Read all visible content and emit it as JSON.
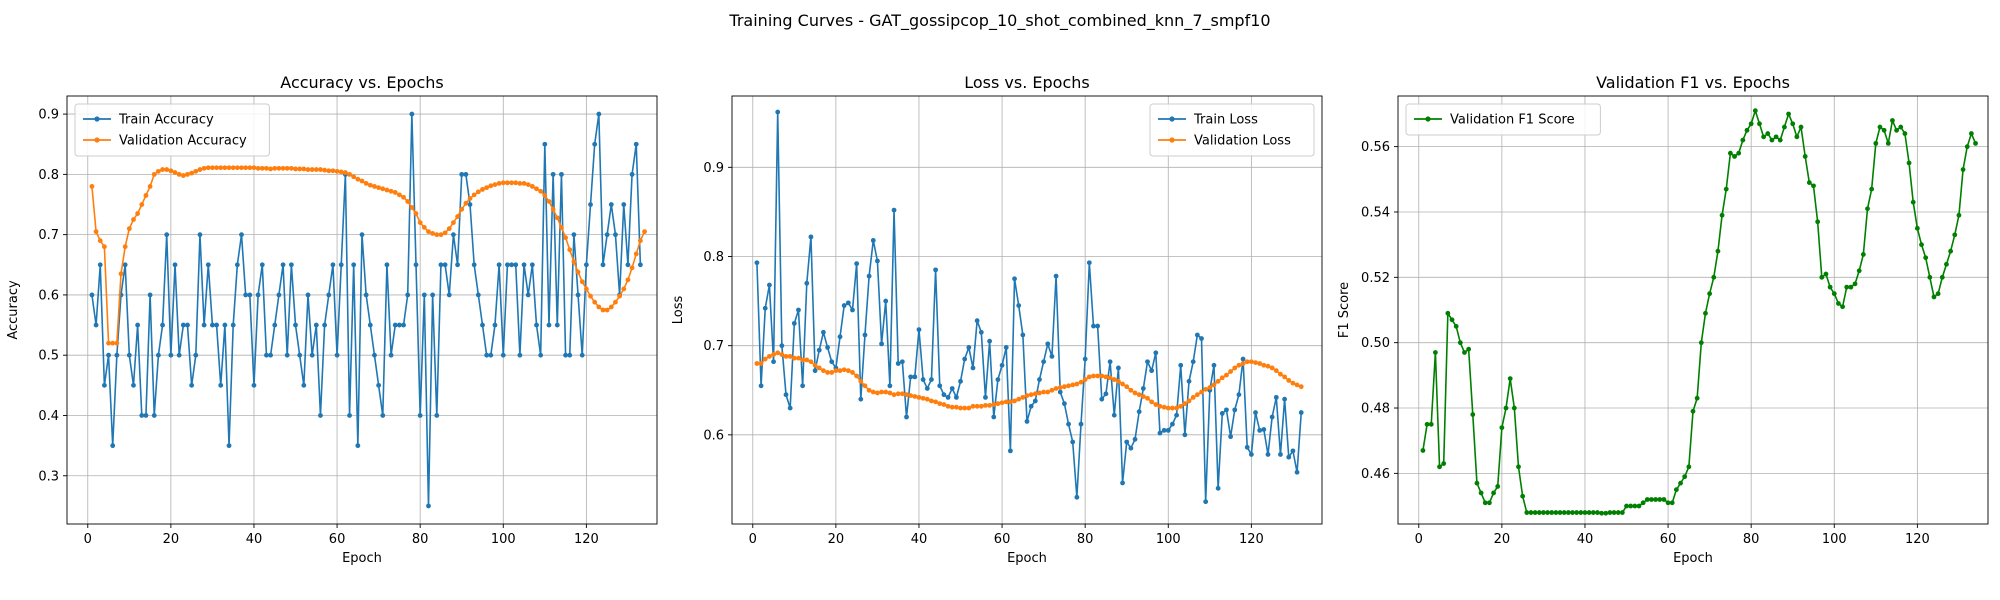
{
  "figure": {
    "suptitle": "Training Curves - GAT_gossipcop_10_shot_combined_knn_7_smpf10"
  },
  "chart_data": [
    {
      "type": "line",
      "title": "Accuracy vs. Epochs",
      "xlabel": "Epoch",
      "ylabel": "Accuracy",
      "xlim": [
        -5,
        137
      ],
      "ylim": [
        0.22,
        0.93
      ],
      "xticks": [
        0,
        20,
        40,
        60,
        80,
        100,
        120
      ],
      "yticks": [
        0.3,
        0.4,
        0.5,
        0.6,
        0.7,
        0.8,
        0.9
      ],
      "tick_format": 1,
      "grid": true,
      "legend_position": "top-left",
      "series": [
        {
          "name": "Train Accuracy",
          "color": "#1f77b4",
          "x_start": 1,
          "values": [
            0.6,
            0.55,
            0.65,
            0.45,
            0.5,
            0.35,
            0.5,
            0.6,
            0.65,
            0.5,
            0.45,
            0.55,
            0.4,
            0.4,
            0.6,
            0.4,
            0.5,
            0.55,
            0.7,
            0.5,
            0.65,
            0.5,
            0.55,
            0.55,
            0.45,
            0.5,
            0.7,
            0.55,
            0.65,
            0.55,
            0.55,
            0.45,
            0.55,
            0.35,
            0.55,
            0.65,
            0.7,
            0.6,
            0.6,
            0.45,
            0.6,
            0.65,
            0.5,
            0.5,
            0.55,
            0.6,
            0.65,
            0.5,
            0.65,
            0.55,
            0.5,
            0.45,
            0.6,
            0.5,
            0.55,
            0.4,
            0.55,
            0.6,
            0.65,
            0.5,
            0.65,
            0.8,
            0.4,
            0.65,
            0.35,
            0.7,
            0.6,
            0.55,
            0.5,
            0.45,
            0.4,
            0.65,
            0.5,
            0.55,
            0.55,
            0.55,
            0.6,
            0.9,
            0.65,
            0.4,
            0.6,
            0.25,
            0.6,
            0.4,
            0.65,
            0.65,
            0.6,
            0.7,
            0.65,
            0.8,
            0.8,
            0.75,
            0.65,
            0.6,
            0.55,
            0.5,
            0.5,
            0.55,
            0.65,
            0.5,
            0.65,
            0.65,
            0.65,
            0.5,
            0.65,
            0.6,
            0.65,
            0.55,
            0.5,
            0.85,
            0.55,
            0.8,
            0.55,
            0.8,
            0.5,
            0.5,
            0.7,
            0.6,
            0.5,
            0.65,
            0.75,
            0.85,
            0.9,
            0.65,
            0.7,
            0.75,
            0.7,
            0.6,
            0.75,
            0.65,
            0.8,
            0.85,
            0.65
          ]
        },
        {
          "name": "Validation Accuracy",
          "color": "#ff7f0e",
          "x_start": 1,
          "values": [
            0.78,
            0.705,
            0.69,
            0.68,
            0.52,
            0.52,
            0.52,
            0.635,
            0.68,
            0.71,
            0.725,
            0.735,
            0.75,
            0.765,
            0.78,
            0.8,
            0.805,
            0.808,
            0.808,
            0.806,
            0.803,
            0.8,
            0.798,
            0.8,
            0.802,
            0.805,
            0.808,
            0.81,
            0.811,
            0.811,
            0.811,
            0.811,
            0.811,
            0.811,
            0.811,
            0.811,
            0.811,
            0.811,
            0.811,
            0.811,
            0.81,
            0.81,
            0.81,
            0.809,
            0.81,
            0.81,
            0.81,
            0.81,
            0.81,
            0.809,
            0.809,
            0.809,
            0.808,
            0.808,
            0.808,
            0.808,
            0.807,
            0.806,
            0.806,
            0.805,
            0.804,
            0.803,
            0.8,
            0.796,
            0.792,
            0.789,
            0.785,
            0.782,
            0.78,
            0.778,
            0.776,
            0.774,
            0.772,
            0.77,
            0.766,
            0.762,
            0.755,
            0.745,
            0.735,
            0.72,
            0.712,
            0.705,
            0.702,
            0.7,
            0.7,
            0.703,
            0.71,
            0.72,
            0.73,
            0.742,
            0.752,
            0.76,
            0.766,
            0.771,
            0.775,
            0.778,
            0.781,
            0.783,
            0.785,
            0.786,
            0.786,
            0.786,
            0.786,
            0.785,
            0.785,
            0.783,
            0.78,
            0.776,
            0.772,
            0.765,
            0.755,
            0.742,
            0.728,
            0.712,
            0.695,
            0.675,
            0.655,
            0.638,
            0.622,
            0.61,
            0.598,
            0.588,
            0.58,
            0.575,
            0.575,
            0.58,
            0.588,
            0.598,
            0.61,
            0.625,
            0.645,
            0.668,
            0.69,
            0.705
          ]
        }
      ]
    },
    {
      "type": "line",
      "title": "Loss vs. Epochs",
      "xlabel": "Epoch",
      "ylabel": "Loss",
      "xlim": [
        -5,
        137
      ],
      "ylim": [
        0.5,
        0.98
      ],
      "xticks": [
        0,
        20,
        40,
        60,
        80,
        100,
        120
      ],
      "yticks": [
        0.6,
        0.7,
        0.8,
        0.9
      ],
      "tick_format": 1,
      "grid": true,
      "legend_position": "top-right",
      "series": [
        {
          "name": "Train Loss",
          "color": "#1f77b4",
          "x_start": 1,
          "values": [
            0.793,
            0.655,
            0.742,
            0.768,
            0.682,
            0.962,
            0.7,
            0.645,
            0.63,
            0.725,
            0.74,
            0.655,
            0.77,
            0.822,
            0.672,
            0.695,
            0.715,
            0.698,
            0.682,
            0.675,
            0.71,
            0.745,
            0.748,
            0.74,
            0.792,
            0.64,
            0.712,
            0.778,
            0.818,
            0.795,
            0.702,
            0.75,
            0.655,
            0.852,
            0.68,
            0.682,
            0.62,
            0.665,
            0.665,
            0.718,
            0.662,
            0.652,
            0.662,
            0.785,
            0.655,
            0.645,
            0.642,
            0.652,
            0.642,
            0.66,
            0.685,
            0.698,
            0.675,
            0.728,
            0.715,
            0.642,
            0.705,
            0.62,
            0.662,
            0.678,
            0.698,
            0.582,
            0.775,
            0.745,
            0.712,
            0.615,
            0.632,
            0.638,
            0.662,
            0.682,
            0.702,
            0.688,
            0.778,
            0.648,
            0.635,
            0.612,
            0.592,
            0.53,
            0.612,
            0.685,
            0.793,
            0.722,
            0.722,
            0.64,
            0.646,
            0.682,
            0.622,
            0.675,
            0.546,
            0.592,
            0.585,
            0.595,
            0.626,
            0.652,
            0.682,
            0.672,
            0.692,
            0.602,
            0.605,
            0.605,
            0.612,
            0.622,
            0.678,
            0.6,
            0.66,
            0.682,
            0.712,
            0.708,
            0.525,
            0.65,
            0.678,
            0.54,
            0.624,
            0.628,
            0.598,
            0.628,
            0.645,
            0.685,
            0.586,
            0.578,
            0.625,
            0.605,
            0.606,
            0.578,
            0.62,
            0.642,
            0.578,
            0.64,
            0.575,
            0.582,
            0.558,
            0.625
          ]
        },
        {
          "name": "Validation Loss",
          "color": "#ff7f0e",
          "x_start": 1,
          "values": [
            0.68,
            0.68,
            0.685,
            0.688,
            0.69,
            0.692,
            0.69,
            0.688,
            0.688,
            0.686,
            0.686,
            0.684,
            0.684,
            0.682,
            0.678,
            0.675,
            0.672,
            0.67,
            0.67,
            0.672,
            0.672,
            0.673,
            0.672,
            0.67,
            0.666,
            0.66,
            0.655,
            0.65,
            0.648,
            0.647,
            0.648,
            0.648,
            0.647,
            0.645,
            0.646,
            0.646,
            0.645,
            0.644,
            0.643,
            0.642,
            0.641,
            0.64,
            0.638,
            0.637,
            0.635,
            0.634,
            0.632,
            0.631,
            0.631,
            0.63,
            0.63,
            0.63,
            0.632,
            0.632,
            0.632,
            0.633,
            0.633,
            0.634,
            0.635,
            0.636,
            0.637,
            0.637,
            0.638,
            0.64,
            0.642,
            0.644,
            0.645,
            0.646,
            0.647,
            0.648,
            0.648,
            0.65,
            0.652,
            0.653,
            0.654,
            0.655,
            0.656,
            0.657,
            0.659,
            0.662,
            0.665,
            0.666,
            0.666,
            0.666,
            0.665,
            0.664,
            0.662,
            0.66,
            0.657,
            0.654,
            0.65,
            0.647,
            0.645,
            0.643,
            0.641,
            0.637,
            0.634,
            0.632,
            0.631,
            0.63,
            0.63,
            0.63,
            0.632,
            0.635,
            0.638,
            0.642,
            0.645,
            0.648,
            0.651,
            0.653,
            0.656,
            0.66,
            0.664,
            0.667,
            0.671,
            0.675,
            0.678,
            0.68,
            0.682,
            0.682,
            0.681,
            0.68,
            0.678,
            0.677,
            0.675,
            0.672,
            0.668,
            0.665,
            0.661,
            0.658,
            0.656,
            0.654
          ]
        }
      ]
    },
    {
      "type": "line",
      "title": "Validation F1 vs. Epochs",
      "xlabel": "Epoch",
      "ylabel": "F1 Score",
      "xlim": [
        -5,
        137
      ],
      "ylim": [
        0.4445,
        0.5755
      ],
      "xticks": [
        0,
        20,
        40,
        60,
        80,
        100,
        120
      ],
      "yticks": [
        0.46,
        0.48,
        0.5,
        0.52,
        0.54,
        0.56
      ],
      "tick_format": 2,
      "grid": true,
      "legend_position": "top-left",
      "series": [
        {
          "name": "Validation F1 Score",
          "color": "#008000",
          "x_start": 1,
          "values": [
            0.467,
            0.475,
            0.475,
            0.497,
            0.462,
            0.463,
            0.509,
            0.507,
            0.505,
            0.5,
            0.497,
            0.498,
            0.478,
            0.457,
            0.454,
            0.451,
            0.451,
            0.454,
            0.456,
            0.474,
            0.48,
            0.489,
            0.48,
            0.462,
            0.453,
            0.448,
            0.448,
            0.448,
            0.448,
            0.448,
            0.448,
            0.448,
            0.448,
            0.448,
            0.448,
            0.448,
            0.448,
            0.448,
            0.448,
            0.448,
            0.448,
            0.448,
            0.448,
            0.4478,
            0.4478,
            0.448,
            0.448,
            0.448,
            0.448,
            0.45,
            0.45,
            0.45,
            0.45,
            0.451,
            0.452,
            0.452,
            0.452,
            0.452,
            0.452,
            0.451,
            0.451,
            0.455,
            0.457,
            0.459,
            0.462,
            0.479,
            0.483,
            0.5,
            0.509,
            0.515,
            0.52,
            0.528,
            0.539,
            0.547,
            0.558,
            0.557,
            0.558,
            0.562,
            0.565,
            0.567,
            0.571,
            0.567,
            0.563,
            0.564,
            0.562,
            0.563,
            0.562,
            0.566,
            0.57,
            0.567,
            0.563,
            0.566,
            0.557,
            0.549,
            0.548,
            0.537,
            0.52,
            0.521,
            0.517,
            0.515,
            0.512,
            0.511,
            0.517,
            0.517,
            0.518,
            0.522,
            0.527,
            0.541,
            0.547,
            0.561,
            0.566,
            0.565,
            0.561,
            0.568,
            0.565,
            0.566,
            0.564,
            0.555,
            0.543,
            0.535,
            0.53,
            0.526,
            0.52,
            0.514,
            0.515,
            0.52,
            0.524,
            0.528,
            0.533,
            0.539,
            0.553,
            0.56,
            0.564,
            0.561
          ]
        }
      ]
    }
  ]
}
